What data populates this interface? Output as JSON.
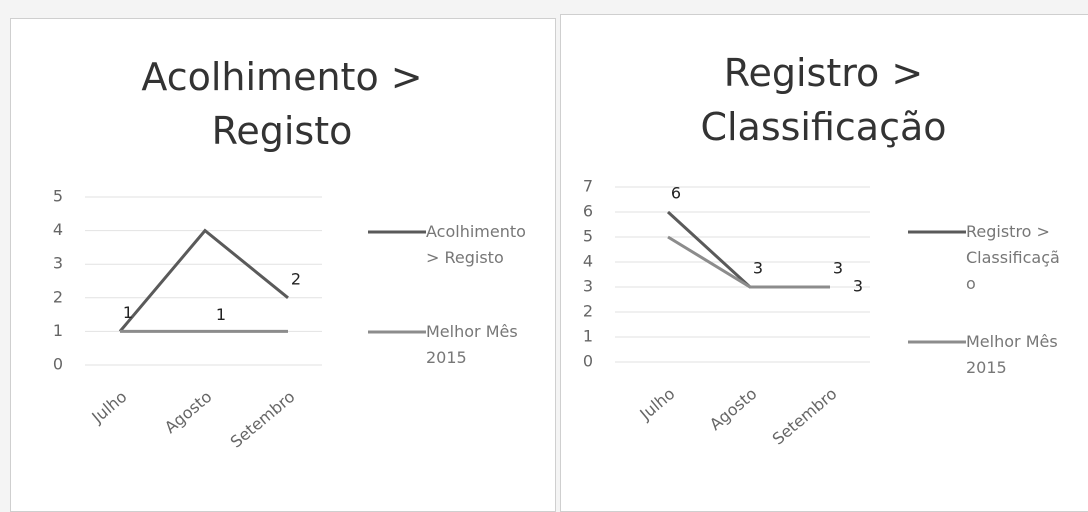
{
  "chart_data": [
    {
      "type": "line",
      "title": "Acolhimento > Registo",
      "categories": [
        "Julho",
        "Agosto",
        "Setembro"
      ],
      "series": [
        {
          "name": "Acolhimento > Registo",
          "color": "#5a5a5a",
          "values": [
            1,
            4,
            2
          ],
          "value_labels": [
            "1",
            null,
            "2"
          ]
        },
        {
          "name": "Melhor Mês 2015",
          "color": "#8c8c8c",
          "values": [
            1,
            1,
            1
          ],
          "value_labels": [
            null,
            "1",
            null
          ]
        }
      ],
      "ylim": [
        0,
        5
      ],
      "yticks": [
        0,
        1,
        2,
        3,
        4,
        5
      ],
      "grid": true,
      "legend": "right"
    },
    {
      "type": "line",
      "title": "Registro > Classificação",
      "categories": [
        "Julho",
        "Agosto",
        "Setembro"
      ],
      "series": [
        {
          "name": "Registro > Classificação",
          "color": "#5a5a5a",
          "values": [
            6,
            3,
            3
          ],
          "value_labels": [
            "6",
            "3",
            "3"
          ]
        },
        {
          "name": "Melhor Mês 2015",
          "color": "#8c8c8c",
          "values": [
            5,
            3,
            3
          ],
          "value_labels": [
            null,
            null,
            "3"
          ]
        }
      ],
      "ylim": [
        0,
        7
      ],
      "yticks": [
        0,
        1,
        2,
        3,
        4,
        5,
        6,
        7
      ],
      "grid": true,
      "legend": "right"
    }
  ]
}
